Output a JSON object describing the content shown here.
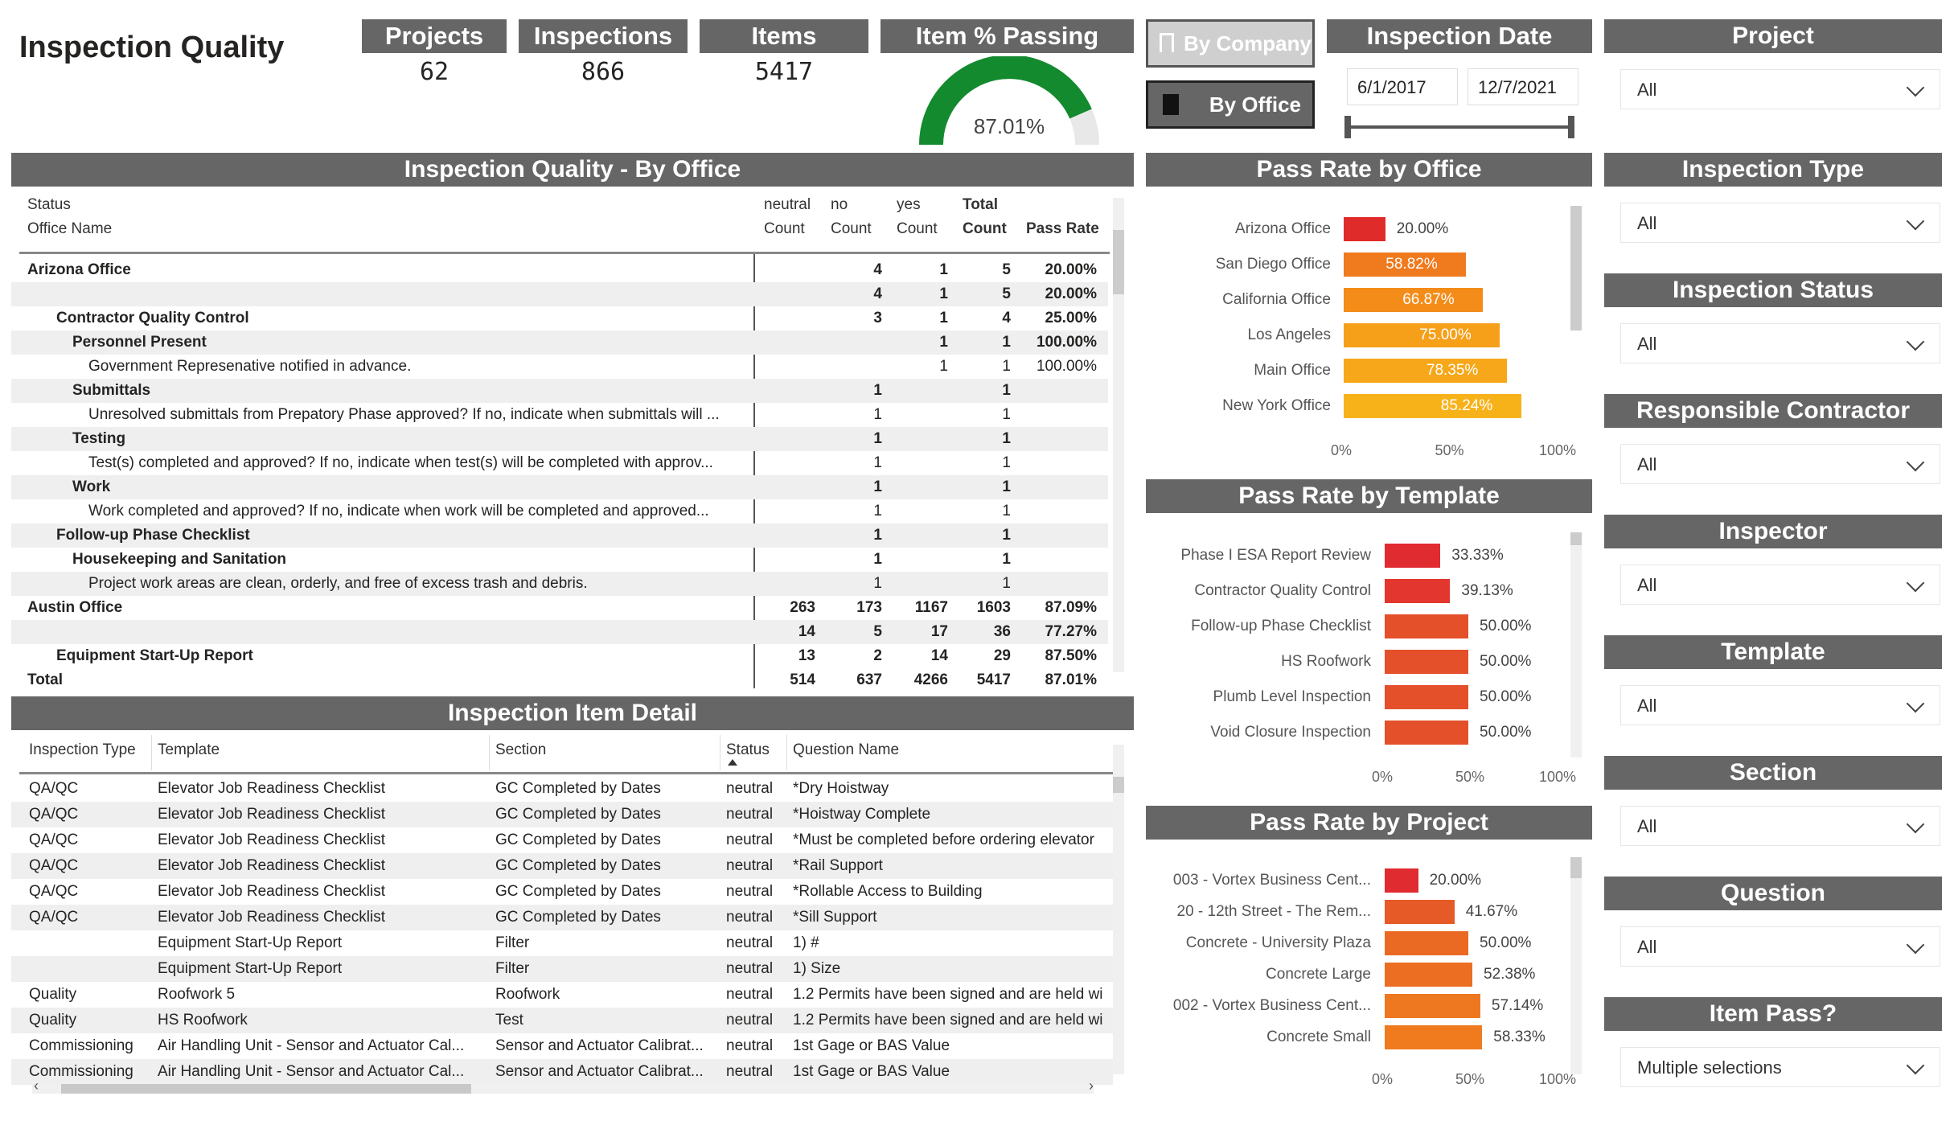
{
  "page_title": "Inspection Quality",
  "kpis": [
    {
      "label": "Projects",
      "value": "62"
    },
    {
      "label": "Inspections",
      "value": "866"
    },
    {
      "label": "Items",
      "value": "5417"
    },
    {
      "label": "Item % Passing",
      "value": "87.01%",
      "fraction": 0.8701
    }
  ],
  "toggles": {
    "by_company": "By Company",
    "by_office": "By Office"
  },
  "date_slicer": {
    "title": "Inspection Date",
    "start": "6/1/2017",
    "end": "12/7/2021"
  },
  "slicers": [
    {
      "title": "Project",
      "value": "All"
    },
    {
      "title": "Inspection Type",
      "value": "All"
    },
    {
      "title": "Inspection Status",
      "value": "All"
    },
    {
      "title": "Responsible Contractor",
      "value": "All"
    },
    {
      "title": "Inspector",
      "value": "All"
    },
    {
      "title": "Template",
      "value": "All"
    },
    {
      "title": "Section",
      "value": "All"
    },
    {
      "title": "Question",
      "value": "All"
    },
    {
      "title": "Item Pass?",
      "value": "Multiple selections"
    }
  ],
  "matrix": {
    "title": "Inspection Quality - By Office",
    "col_status": "Status",
    "col_office": "Office Name",
    "col_neutral_1": "neutral",
    "col_neutral_2": "Count",
    "col_no_1": "no",
    "col_no_2": "Count",
    "col_yes_1": "yes",
    "col_yes_2": "Count",
    "col_total_1": "Total",
    "col_total_2": "Count",
    "col_rate": "Pass Rate",
    "rows": [
      {
        "label": "Arizona Office",
        "indent": 0,
        "bold": true,
        "neutral": "",
        "no": "4",
        "yes": "1",
        "total": "5",
        "rate": "20.00%"
      },
      {
        "label": "",
        "indent": 0,
        "bold": true,
        "neutral": "",
        "no": "4",
        "yes": "1",
        "total": "5",
        "rate": "20.00%"
      },
      {
        "label": "Contractor Quality Control",
        "indent": 1,
        "bold": true,
        "neutral": "",
        "no": "3",
        "yes": "1",
        "total": "4",
        "rate": "25.00%"
      },
      {
        "label": "Personnel Present",
        "indent": 2,
        "bold": true,
        "neutral": "",
        "no": "",
        "yes": "1",
        "total": "1",
        "rate": "100.00%"
      },
      {
        "label": "Government Represenative notified in advance.",
        "indent": 3,
        "bold": false,
        "neutral": "",
        "no": "",
        "yes": "1",
        "total": "1",
        "rate": "100.00%"
      },
      {
        "label": "Submittals",
        "indent": 2,
        "bold": true,
        "neutral": "",
        "no": "1",
        "yes": "",
        "total": "1",
        "rate": ""
      },
      {
        "label": "Unresolved submittals from Prepatory Phase approved? If no, indicate when submittals will ...",
        "indent": 3,
        "bold": false,
        "neutral": "",
        "no": "1",
        "yes": "",
        "total": "1",
        "rate": ""
      },
      {
        "label": "Testing",
        "indent": 2,
        "bold": true,
        "neutral": "",
        "no": "1",
        "yes": "",
        "total": "1",
        "rate": ""
      },
      {
        "label": "Test(s) completed and approved? If no, indicate when test(s) will be completed with approv...",
        "indent": 3,
        "bold": false,
        "neutral": "",
        "no": "1",
        "yes": "",
        "total": "1",
        "rate": ""
      },
      {
        "label": "Work",
        "indent": 2,
        "bold": true,
        "neutral": "",
        "no": "1",
        "yes": "",
        "total": "1",
        "rate": ""
      },
      {
        "label": "Work completed and approved? If no, indicate when work will be completed and approved...",
        "indent": 3,
        "bold": false,
        "neutral": "",
        "no": "1",
        "yes": "",
        "total": "1",
        "rate": ""
      },
      {
        "label": "Follow-up Phase Checklist",
        "indent": 1,
        "bold": true,
        "neutral": "",
        "no": "1",
        "yes": "",
        "total": "1",
        "rate": ""
      },
      {
        "label": "Housekeeping and Sanitation",
        "indent": 2,
        "bold": true,
        "neutral": "",
        "no": "1",
        "yes": "",
        "total": "1",
        "rate": ""
      },
      {
        "label": "Project work areas are clean, orderly, and free of excess trash and debris.",
        "indent": 3,
        "bold": false,
        "neutral": "",
        "no": "1",
        "yes": "",
        "total": "1",
        "rate": ""
      },
      {
        "label": "Austin Office",
        "indent": 0,
        "bold": true,
        "neutral": "263",
        "no": "173",
        "yes": "1167",
        "total": "1603",
        "rate": "87.09%"
      },
      {
        "label": "",
        "indent": 0,
        "bold": true,
        "neutral": "14",
        "no": "5",
        "yes": "17",
        "total": "36",
        "rate": "77.27%"
      },
      {
        "label": "Equipment Start-Up Report",
        "indent": 1,
        "bold": true,
        "neutral": "13",
        "no": "2",
        "yes": "14",
        "total": "29",
        "rate": "87.50%"
      }
    ],
    "total": {
      "label": "Total",
      "neutral": "514",
      "no": "637",
      "yes": "4266",
      "total": "5417",
      "rate": "87.01%"
    }
  },
  "detail": {
    "title": "Inspection Item Detail",
    "headers": [
      "Inspection Type",
      "Template",
      "Section",
      "Status",
      "Question Name"
    ],
    "rows": [
      [
        "QA/QC",
        "Elevator Job Readiness Checklist",
        "GC Completed by Dates",
        "neutral",
        "*Dry Hoistway"
      ],
      [
        "QA/QC",
        "Elevator Job Readiness Checklist",
        "GC Completed by Dates",
        "neutral",
        "*Hoistway Complete"
      ],
      [
        "QA/QC",
        "Elevator Job Readiness Checklist",
        "GC Completed by Dates",
        "neutral",
        "*Must be completed before ordering elevator"
      ],
      [
        "QA/QC",
        "Elevator Job Readiness Checklist",
        "GC Completed by Dates",
        "neutral",
        "*Rail Support"
      ],
      [
        "QA/QC",
        "Elevator Job Readiness Checklist",
        "GC Completed by Dates",
        "neutral",
        "*Rollable Access to Building"
      ],
      [
        "QA/QC",
        "Elevator Job Readiness Checklist",
        "GC Completed by Dates",
        "neutral",
        "*Sill Support"
      ],
      [
        "",
        "Equipment Start-Up Report",
        "Filter",
        "neutral",
        "1) #"
      ],
      [
        "",
        "Equipment Start-Up Report",
        "Filter",
        "neutral",
        "1) Size"
      ],
      [
        "Quality",
        "Roofwork 5",
        "Roofwork",
        "neutral",
        "1.2 Permits have been signed and are held wi"
      ],
      [
        "Quality",
        "HS Roofwork",
        "Test",
        "neutral",
        "1.2 Permits have been signed and are held wi"
      ],
      [
        "Commissioning",
        "Air Handling Unit - Sensor and Actuator Cal...",
        "Sensor and Actuator Calibrat...",
        "neutral",
        "1st Gage or BAS Value"
      ],
      [
        "Commissioning",
        "Air Handling Unit - Sensor and Actuator Cal...",
        "Sensor and Actuator Calibrat...",
        "neutral",
        "1st Gage or BAS Value"
      ]
    ]
  },
  "chart_data": [
    {
      "type": "bar",
      "title": "Pass Rate by Office",
      "categories": [
        "Arizona Office",
        "San Diego Office",
        "California Office",
        "Los Angeles",
        "Main Office",
        "New York Office"
      ],
      "values": [
        20.0,
        58.82,
        66.87,
        75.0,
        78.35,
        85.24
      ],
      "labels": [
        "20.00%",
        "58.82%",
        "66.87%",
        "75.00%",
        "78.35%",
        "85.24%"
      ],
      "colors": [
        "#e02b2b",
        "#f07a1e",
        "#f48c1a",
        "#f6a01a",
        "#f6a81a",
        "#f7b21a"
      ],
      "ticks": [
        "0%",
        "50%",
        "100%"
      ],
      "xlim": [
        0,
        100
      ]
    },
    {
      "type": "bar",
      "title": "Pass Rate by Template",
      "categories": [
        "Phase I ESA Report Review",
        "Contractor Quality Control",
        "Follow-up Phase Checklist",
        "HS Roofwork",
        "Plumb Level Inspection",
        "Void Closure Inspection"
      ],
      "values": [
        33.33,
        39.13,
        50.0,
        50.0,
        50.0,
        50.0
      ],
      "labels": [
        "33.33%",
        "39.13%",
        "50.00%",
        "50.00%",
        "50.00%",
        "50.00%"
      ],
      "colors": [
        "#e02b30",
        "#e2362e",
        "#e4502a",
        "#e4502a",
        "#e4502a",
        "#e4502a"
      ],
      "ticks": [
        "0%",
        "50%",
        "100%"
      ],
      "xlim": [
        0,
        100
      ]
    },
    {
      "type": "bar",
      "title": "Pass Rate by Project",
      "categories": [
        "003 - Vortex Business Cent...",
        "20 - 12th Street - The Rem...",
        "Concrete - University Plaza",
        "Concrete Large",
        "002 - Vortex Business Cent...",
        "Concrete Small"
      ],
      "values": [
        20.0,
        41.67,
        50.0,
        52.38,
        57.14,
        58.33
      ],
      "labels": [
        "20.00%",
        "41.67%",
        "50.00%",
        "52.38%",
        "57.14%",
        "58.33%"
      ],
      "colors": [
        "#e02b30",
        "#e65a28",
        "#ea6a24",
        "#ec6e22",
        "#ee7820",
        "#f07a1e"
      ],
      "ticks": [
        "0%",
        "50%",
        "100%"
      ],
      "xlim": [
        0,
        100
      ]
    }
  ]
}
